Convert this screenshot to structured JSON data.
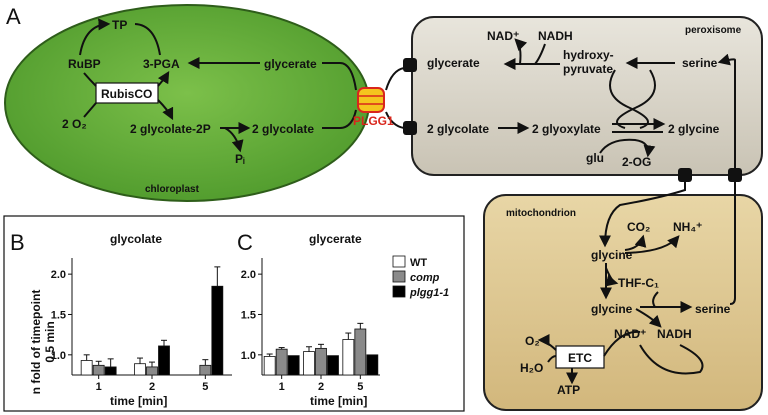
{
  "panels": {
    "A": "A",
    "B": "B",
    "C": "C"
  },
  "chloroplast": {
    "label": "chloroplast",
    "TP": "TP",
    "RuBP": "RuBP",
    "PGA": "3-PGA",
    "glycerate": "glycerate",
    "rubisco": "RubisCO",
    "o2": "2 O₂",
    "glycolate2P": "2 glycolate-2P",
    "glycolate": "2 glycolate",
    "pi": "Pᵢ"
  },
  "transporter": "PLGG1",
  "peroxisome": {
    "label": "peroxisome",
    "nad": "NAD⁺",
    "nadh": "NADH",
    "glycerate": "glycerate",
    "hydroxy1": "hydroxy-",
    "hydroxy2": "pyruvate",
    "serine": "serine",
    "glycolate": "2 glycolate",
    "glyoxylate": "2 glyoxylate",
    "glycine": "2 glycine",
    "glu": "glu",
    "og": "2-OG"
  },
  "mitochondrion": {
    "label": "mitochondrion",
    "co2": "CO₂",
    "nh4": "NH₄⁺",
    "glycine1": "glycine",
    "thf": "THF-C₁",
    "glycine2": "glycine",
    "serine": "serine",
    "o2": "O₂",
    "nad": "NAD⁺",
    "nadh": "NADH",
    "etc": "ETC",
    "h2o": "H₂O",
    "atp": "ATP"
  },
  "chart_data": [
    {
      "type": "bar",
      "title": "glycolate",
      "categories": [
        "1",
        "2",
        "5"
      ],
      "xlabel": "time [min]",
      "ylabel": "n fold of timepoint 0.5 min",
      "yticks": [
        "1.0",
        "1.5",
        "2.0"
      ],
      "ylim": [
        0.75,
        2.2
      ],
      "series": [
        {
          "name": "WT",
          "color": "#ffffff",
          "values": [
            0.93,
            0.89,
            null
          ],
          "errors": [
            0.07,
            0.07,
            null
          ]
        },
        {
          "name": "comp",
          "color": "#8a8a8a",
          "values": [
            0.87,
            0.85,
            0.87
          ],
          "errors": [
            0.05,
            0.06,
            0.07
          ]
        },
        {
          "name": "plgg1-1",
          "color": "#000000",
          "values": [
            0.85,
            1.11,
            1.85
          ],
          "errors": [
            0.1,
            0.07,
            0.24
          ]
        }
      ]
    },
    {
      "type": "bar",
      "title": "glycerate",
      "categories": [
        "1",
        "2",
        "5"
      ],
      "xlabel": "time [min]",
      "yticks": [
        "1.0",
        "1.5",
        "2.0"
      ],
      "ylim": [
        0.75,
        2.2
      ],
      "legend": "top-right",
      "series": [
        {
          "name": "WT",
          "color": "#ffffff",
          "values": [
            0.98,
            1.04,
            1.19
          ],
          "errors": [
            0.03,
            0.06,
            0.08
          ]
        },
        {
          "name": "comp",
          "color": "#8a8a8a",
          "values": [
            1.07,
            1.08,
            1.32
          ],
          "errors": [
            0.02,
            0.05,
            0.07
          ]
        },
        {
          "name": "plgg1-1",
          "color": "#000000",
          "values": [
            0.99,
            0.99,
            1.0
          ],
          "errors": [
            0.0,
            0.0,
            0.0
          ]
        }
      ]
    }
  ]
}
